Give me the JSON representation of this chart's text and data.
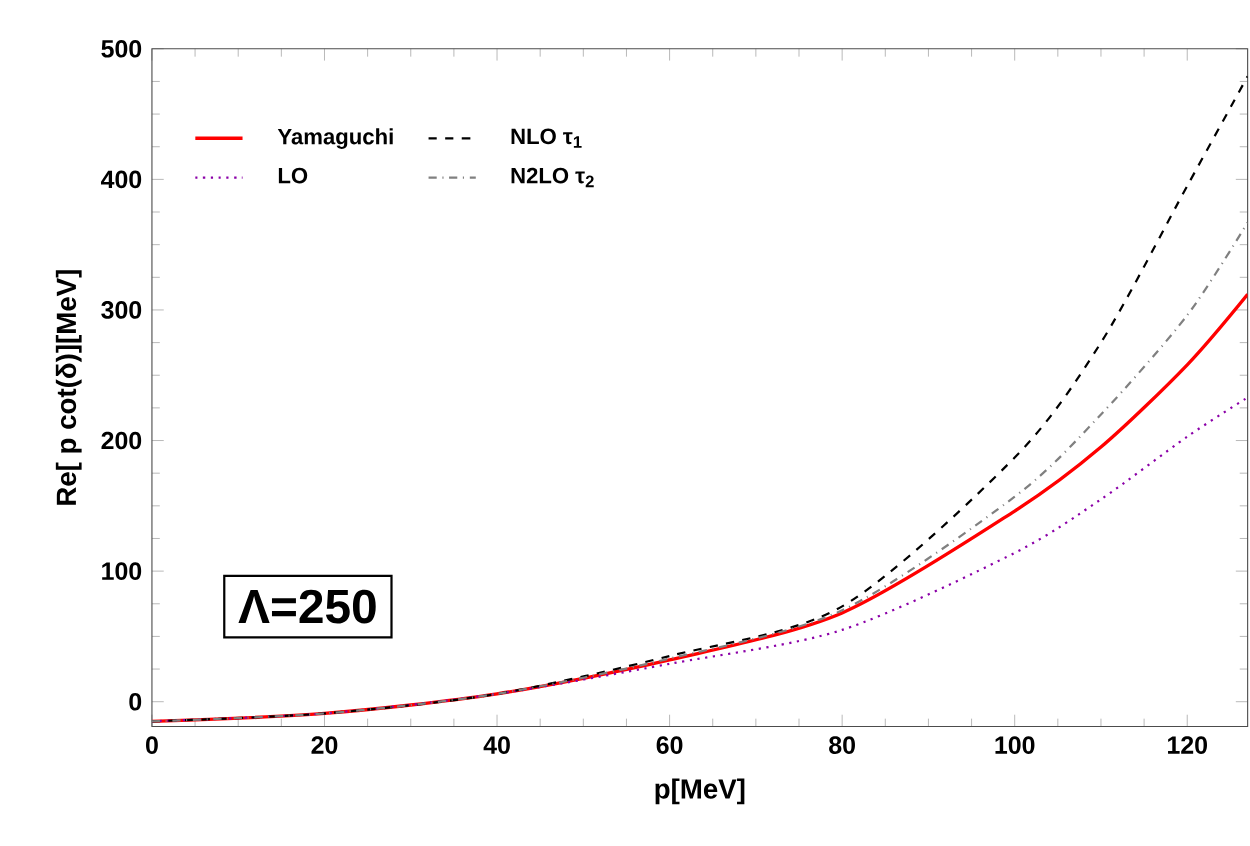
{
  "chart_data": {
    "type": "line",
    "xlabel": "p[MeV]",
    "ylabel": "Re[ p cot(δ)][MeV]",
    "x": [
      0,
      20,
      40,
      60,
      80,
      100,
      110,
      120,
      127
    ],
    "series": [
      {
        "name": "Yamaguchi",
        "color": "#ff0000",
        "line_style": "solid",
        "values": [
          -15,
          -9,
          6,
          32,
          68,
          146,
          195,
          258,
          312
        ]
      },
      {
        "name": "LO",
        "color": "#8b00a8",
        "line_style": "dotted",
        "values": [
          -15,
          -9,
          6,
          29,
          55,
          114,
          155,
          203,
          233
        ]
      },
      {
        "name": "NLO τ$_{1}$",
        "color": "#000000",
        "line_style": "dashed",
        "values": [
          -15,
          -9,
          6,
          35,
          73,
          187,
          275,
          395,
          479
        ]
      },
      {
        "name": "N2LO τ$_{2}$",
        "color": "#808080",
        "line_style": "dashdot",
        "values": [
          -15,
          -9,
          6,
          33,
          70,
          157,
          220,
          296,
          367
        ]
      }
    ],
    "xlim": [
      0,
      127
    ],
    "ylim": [
      -19,
      500
    ],
    "xticks": [
      0,
      20,
      40,
      60,
      80,
      100,
      120
    ],
    "yticks": [
      0,
      100,
      200,
      300,
      400,
      500
    ],
    "legend": "top left",
    "grid": false,
    "marker": "none",
    "annotations": [
      {
        "text": "Λ=250"
      }
    ]
  }
}
